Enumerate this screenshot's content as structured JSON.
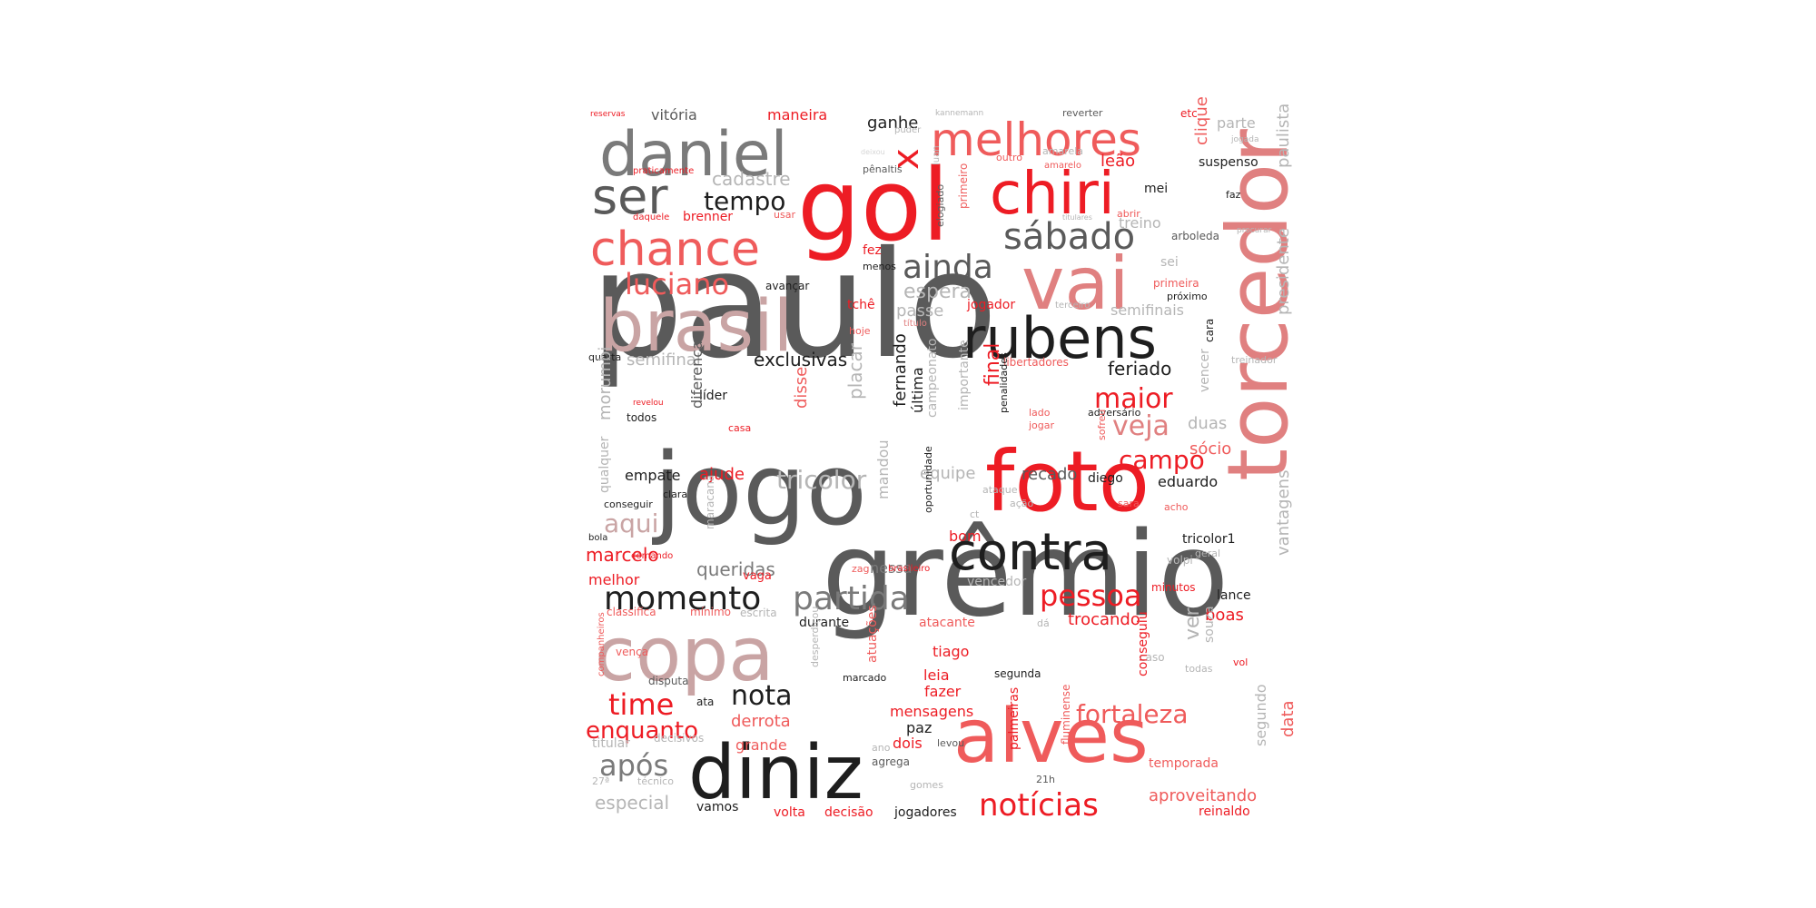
{
  "palette": {
    "red": "#ed1c24",
    "light_red": "#ef5b5b",
    "coral": "#e26a6a",
    "pink": "#e08080",
    "rose": "#c9a4a4",
    "dark": "#1e1e1e",
    "mid": "#5a5a5a",
    "gray": "#7a7a7a",
    "light_gray": "#b5b5b5",
    "pale": "#d5d5d5"
  },
  "words": [
    {
      "text": "paulo",
      "color": "mid"
    },
    {
      "text": "grêmio",
      "color": "mid"
    },
    {
      "text": "jogo",
      "color": "mid"
    },
    {
      "text": "gol",
      "color": "red"
    },
    {
      "text": "torcedor",
      "color": "pink"
    },
    {
      "text": "foto",
      "color": "red"
    },
    {
      "text": "alves",
      "color": "light_red"
    },
    {
      "text": "diniz",
      "color": "dark"
    },
    {
      "text": "copa",
      "color": "rose"
    },
    {
      "text": "brasil",
      "color": "rose"
    },
    {
      "text": "vai",
      "color": "pink"
    },
    {
      "text": "daniel",
      "color": "gray"
    },
    {
      "text": "rubens",
      "color": "dark"
    },
    {
      "text": "chiri",
      "color": "red"
    },
    {
      "text": "contra",
      "color": "dark"
    },
    {
      "text": "melhores",
      "color": "light_red"
    },
    {
      "text": "chance",
      "color": "light_red"
    },
    {
      "text": "ser",
      "color": "mid"
    },
    {
      "text": "x",
      "color": "red"
    },
    {
      "text": "sábado",
      "color": "mid"
    },
    {
      "text": "ainda",
      "color": "mid"
    },
    {
      "text": "luciano",
      "color": "light_red"
    },
    {
      "text": "tempo",
      "color": "dark"
    },
    {
      "text": "momento",
      "color": "dark"
    },
    {
      "text": "partida",
      "color": "gray"
    },
    {
      "text": "nota",
      "color": "dark"
    },
    {
      "text": "notícias",
      "color": "red"
    },
    {
      "text": "fortaleza",
      "color": "light_red"
    },
    {
      "text": "pessoa",
      "color": "red"
    },
    {
      "text": "maior",
      "color": "red"
    },
    {
      "text": "veja",
      "color": "pink"
    },
    {
      "text": "campo",
      "color": "red"
    },
    {
      "text": "tricolor",
      "color": "light_gray"
    },
    {
      "text": "aqui",
      "color": "rose"
    },
    {
      "text": "após",
      "color": "gray"
    },
    {
      "text": "time",
      "color": "red"
    },
    {
      "text": "enquanto",
      "color": "red"
    },
    {
      "text": "feriado",
      "color": "dark"
    },
    {
      "text": "exclusivas",
      "color": "dark"
    },
    {
      "text": "queridas",
      "color": "gray"
    },
    {
      "text": "especial",
      "color": "light_gray"
    },
    {
      "text": "aproveitando",
      "color": "light_red"
    },
    {
      "text": "trocando",
      "color": "red"
    },
    {
      "text": "espera",
      "color": "light_gray"
    },
    {
      "text": "cadastre",
      "color": "light_gray"
    },
    {
      "text": "ganhe",
      "color": "dark"
    },
    {
      "text": "vitória",
      "color": "mid"
    },
    {
      "text": "maneira",
      "color": "red"
    },
    {
      "text": "leão",
      "color": "red"
    },
    {
      "text": "semifinal",
      "color": "light_gray"
    },
    {
      "text": "semifinais",
      "color": "light_gray"
    },
    {
      "text": "marcelo",
      "color": "red"
    },
    {
      "text": "melhor",
      "color": "red"
    },
    {
      "text": "ajude",
      "color": "red"
    },
    {
      "text": "empate",
      "color": "dark"
    },
    {
      "text": "recado",
      "color": "mid"
    },
    {
      "text": "equipe",
      "color": "light_gray"
    },
    {
      "text": "eduardo",
      "color": "dark"
    },
    {
      "text": "diego",
      "color": "dark"
    },
    {
      "text": "sócio",
      "color": "light_red"
    },
    {
      "text": "duas",
      "color": "light_gray"
    },
    {
      "text": "boas",
      "color": "red"
    },
    {
      "text": "lance",
      "color": "dark"
    },
    {
      "text": "derrota",
      "color": "light_red"
    },
    {
      "text": "grande",
      "color": "light_red"
    },
    {
      "text": "mensagens",
      "color": "red"
    },
    {
      "text": "fazer",
      "color": "red"
    },
    {
      "text": "leia",
      "color": "red"
    },
    {
      "text": "tiago",
      "color": "red"
    },
    {
      "text": "dois",
      "color": "red"
    },
    {
      "text": "paz",
      "color": "dark"
    },
    {
      "text": "volta",
      "color": "red"
    },
    {
      "text": "decisão",
      "color": "red"
    },
    {
      "text": "jogadores",
      "color": "dark"
    },
    {
      "text": "reinaldo",
      "color": "red"
    },
    {
      "text": "temporada",
      "color": "light_red"
    },
    {
      "text": "vamos",
      "color": "dark"
    },
    {
      "text": "bom",
      "color": "red"
    },
    {
      "text": "nessa",
      "color": "gray"
    },
    {
      "text": "durante",
      "color": "dark"
    },
    {
      "text": "atacante",
      "color": "light_red"
    },
    {
      "text": "segunda",
      "color": "dark"
    },
    {
      "text": "passe",
      "color": "light_gray"
    },
    {
      "text": "jogador",
      "color": "red"
    },
    {
      "text": "tchê",
      "color": "red"
    },
    {
      "text": "avançar",
      "color": "dark"
    },
    {
      "text": "brenner",
      "color": "red"
    },
    {
      "text": "parte",
      "color": "light_gray"
    },
    {
      "text": "suspenso",
      "color": "dark"
    },
    {
      "text": "arboleda",
      "color": "mid"
    },
    {
      "text": "treino",
      "color": "light_gray"
    },
    {
      "text": "primeira",
      "color": "light_red"
    },
    {
      "text": "próximo",
      "color": "dark"
    },
    {
      "text": "libertadores",
      "color": "light_red"
    },
    {
      "text": "adversário",
      "color": "dark"
    },
    {
      "text": "líder",
      "color": "dark"
    },
    {
      "text": "todos",
      "color": "dark"
    },
    {
      "text": "bola",
      "color": "dark"
    },
    {
      "text": "vaga",
      "color": "red"
    },
    {
      "text": "quarta",
      "color": "dark"
    },
    {
      "text": "disputa",
      "color": "mid"
    },
    {
      "text": "ata",
      "color": "dark"
    },
    {
      "text": "titular",
      "color": "light_gray"
    },
    {
      "text": "decisivos",
      "color": "light_gray"
    },
    {
      "text": "técnico",
      "color": "light_gray"
    },
    {
      "text": "27ª",
      "color": "light_gray"
    },
    {
      "text": "agrega",
      "color": "mid"
    },
    {
      "text": "levou",
      "color": "mid"
    },
    {
      "text": "ano",
      "color": "light_gray"
    },
    {
      "text": "gomes",
      "color": "light_gray"
    },
    {
      "text": "21h",
      "color": "mid"
    },
    {
      "text": "casa",
      "color": "red"
    },
    {
      "text": "revelou",
      "color": "red"
    },
    {
      "text": "conseguir",
      "color": "dark"
    },
    {
      "text": "clara",
      "color": "dark"
    },
    {
      "text": "reservas",
      "color": "red"
    },
    {
      "text": "praticamente",
      "color": "red"
    },
    {
      "text": "daquele",
      "color": "red"
    },
    {
      "text": "usar",
      "color": "light_red"
    },
    {
      "text": "fez",
      "color": "red"
    },
    {
      "text": "menos",
      "color": "dark"
    },
    {
      "text": "hoje",
      "color": "light_red"
    },
    {
      "text": "título",
      "color": "pink"
    },
    {
      "text": "mei",
      "color": "dark"
    },
    {
      "text": "faz",
      "color": "dark"
    },
    {
      "text": "sei",
      "color": "light_gray"
    },
    {
      "text": "kannemann",
      "color": "light_gray"
    },
    {
      "text": "puder",
      "color": "light_gray"
    },
    {
      "text": "reverter",
      "color": "mid"
    },
    {
      "text": "etc",
      "color": "red"
    },
    {
      "text": "outro",
      "color": "light_red"
    },
    {
      "text": "amarela",
      "color": "light_gray"
    },
    {
      "text": "amarelo",
      "color": "light_red"
    },
    {
      "text": "titulares",
      "color": "light_gray"
    },
    {
      "text": "abrir",
      "color": "light_red"
    },
    {
      "text": "pênaltis",
      "color": "mid"
    },
    {
      "text": "deixou",
      "color": "pale"
    },
    {
      "text": "jogada",
      "color": "light_gray"
    },
    {
      "text": "procurar",
      "color": "light_gray"
    },
    {
      "text": "terceiro",
      "color": "light_gray"
    },
    {
      "text": "treinador",
      "color": "light_gray"
    },
    {
      "text": "lado",
      "color": "light_red"
    },
    {
      "text": "jogar",
      "color": "light_red"
    },
    {
      "text": "acho",
      "color": "light_red"
    },
    {
      "text": "sara",
      "color": "light_red"
    },
    {
      "text": "ação",
      "color": "light_gray"
    },
    {
      "text": "ct",
      "color": "light_gray"
    },
    {
      "text": "ataque",
      "color": "light_gray"
    },
    {
      "text": "zag",
      "color": "light_red"
    },
    {
      "text": "brasileiro",
      "color": "red"
    },
    {
      "text": "vencedor",
      "color": "light_gray"
    },
    {
      "text": "comando",
      "color": "red"
    },
    {
      "text": "classifica",
      "color": "light_red"
    },
    {
      "text": "mínimo",
      "color": "light_red"
    },
    {
      "text": "escrita",
      "color": "light_gray"
    },
    {
      "text": "dá",
      "color": "light_gray"
    },
    {
      "text": "caso",
      "color": "light_gray"
    },
    {
      "text": "todas",
      "color": "light_gray"
    },
    {
      "text": "minutos",
      "color": "red"
    },
    {
      "text": "volpi",
      "color": "light_gray"
    },
    {
      "text": "geral",
      "color": "light_gray"
    },
    {
      "text": "tricolor1",
      "color": "dark"
    },
    {
      "text": "vol",
      "color": "red"
    },
    {
      "text": "marcado",
      "color": "dark"
    },
    {
      "text": "vença",
      "color": "light_red"
    },
    {
      "text": "companheiros",
      "color": "light_red"
    },
    {
      "text": "desperdiçou",
      "color": "light_gray"
    },
    {
      "text": "atuações",
      "color": "light_red"
    },
    {
      "text": "conseguiu",
      "color": "red"
    },
    {
      "text": "fluminense",
      "color": "light_red"
    },
    {
      "text": "palmeiras",
      "color": "red"
    },
    {
      "text": "ver",
      "color": "light_gray"
    },
    {
      "text": "souza",
      "color": "light_gray"
    },
    {
      "text": "segundo",
      "color": "light_gray"
    },
    {
      "text": "data",
      "color": "light_red"
    },
    {
      "text": "vantagens",
      "color": "light_gray"
    },
    {
      "text": "presidente",
      "color": "light_gray"
    },
    {
      "text": "paulista",
      "color": "light_gray"
    },
    {
      "text": "vencer",
      "color": "light_gray"
    },
    {
      "text": "cara",
      "color": "dark"
    },
    {
      "text": "sofreu",
      "color": "light_red"
    },
    {
      "text": "clique",
      "color": "light_red"
    },
    {
      "text": "fernando",
      "color": "dark"
    },
    {
      "text": "última",
      "color": "dark"
    },
    {
      "text": "campeonato",
      "color": "light_gray"
    },
    {
      "text": "importante",
      "color": "light_gray"
    },
    {
      "text": "final",
      "color": "red"
    },
    {
      "text": "penalidades",
      "color": "dark"
    },
    {
      "text": "oportunidade",
      "color": "dark"
    },
    {
      "text": "mandou",
      "color": "light_gray"
    },
    {
      "text": "placar",
      "color": "light_gray"
    },
    {
      "text": "disse",
      "color": "light_red"
    },
    {
      "text": "diferença",
      "color": "mid"
    },
    {
      "text": "morumbi",
      "color": "light_gray"
    },
    {
      "text": "qualquer",
      "color": "light_gray"
    },
    {
      "text": "maracanã",
      "color": "light_gray"
    },
    {
      "text": "luan",
      "color": "light_gray"
    },
    {
      "text": "elogiado",
      "color": "mid"
    },
    {
      "text": "primeiro",
      "color": "light_red"
    }
  ]
}
